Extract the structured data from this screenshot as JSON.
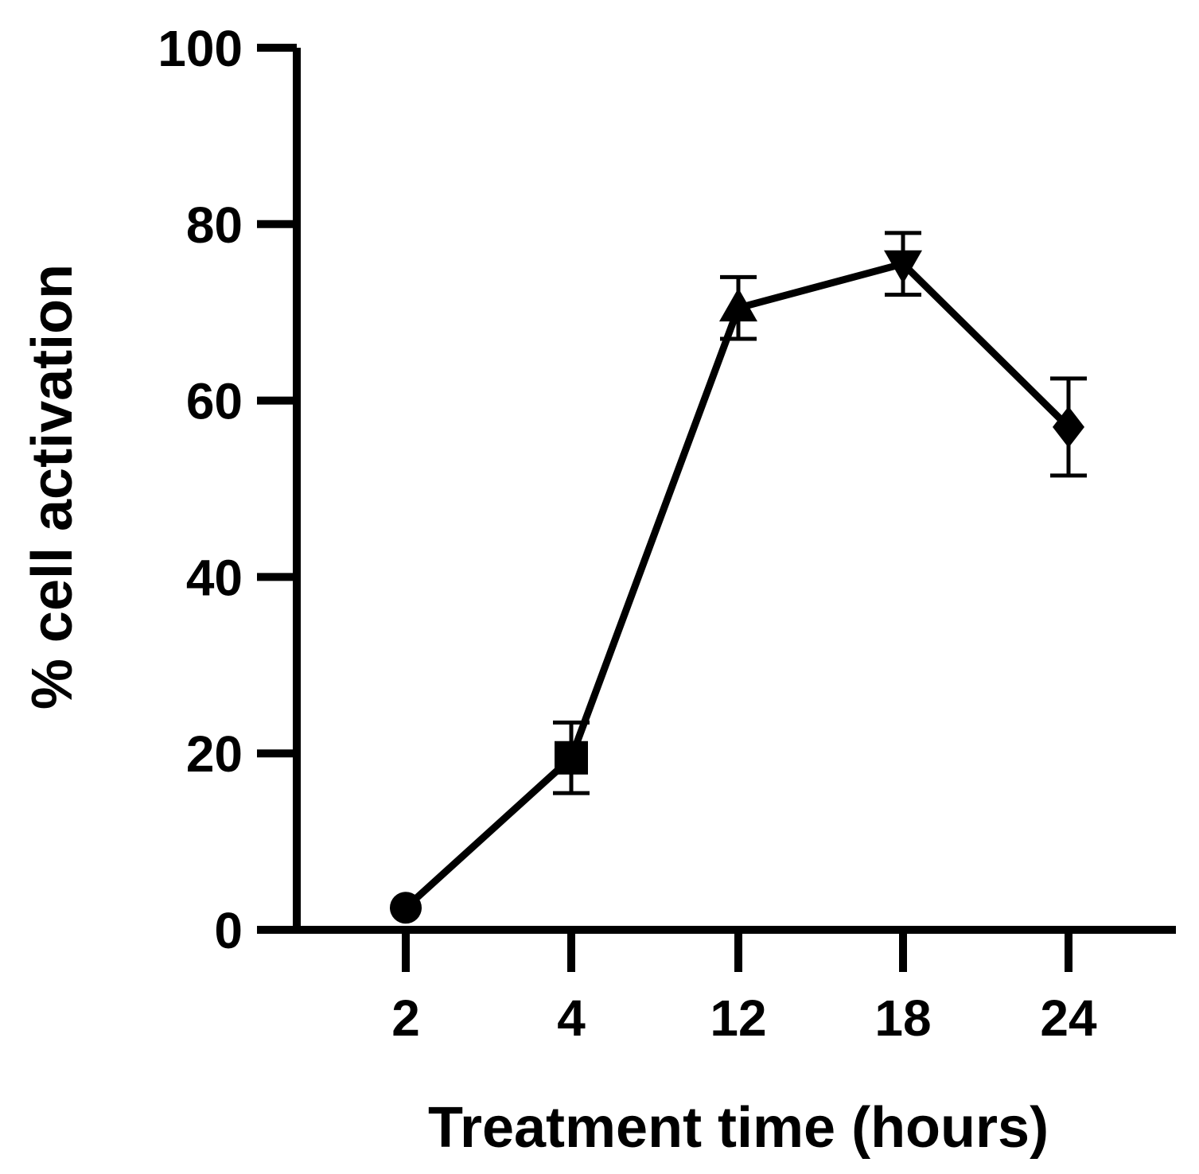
{
  "chart_data": {
    "type": "line",
    "title": "",
    "xlabel": "Treatment time (hours)",
    "ylabel": "% cell activation",
    "categories": [
      "2",
      "4",
      "12",
      "18",
      "24"
    ],
    "ylim": [
      0,
      100
    ],
    "yticks": [
      "0",
      "20",
      "40",
      "60",
      "80",
      "100"
    ],
    "grid": false,
    "series": [
      {
        "values": [
          2.5,
          19.5,
          70.5,
          75.5,
          57
        ],
        "errors": [
          1,
          4,
          3.5,
          3.5,
          5.5
        ],
        "markers": [
          "circle",
          "square",
          "triangle-up",
          "triangle-down",
          "diamond"
        ],
        "color": "#000000"
      }
    ]
  }
}
